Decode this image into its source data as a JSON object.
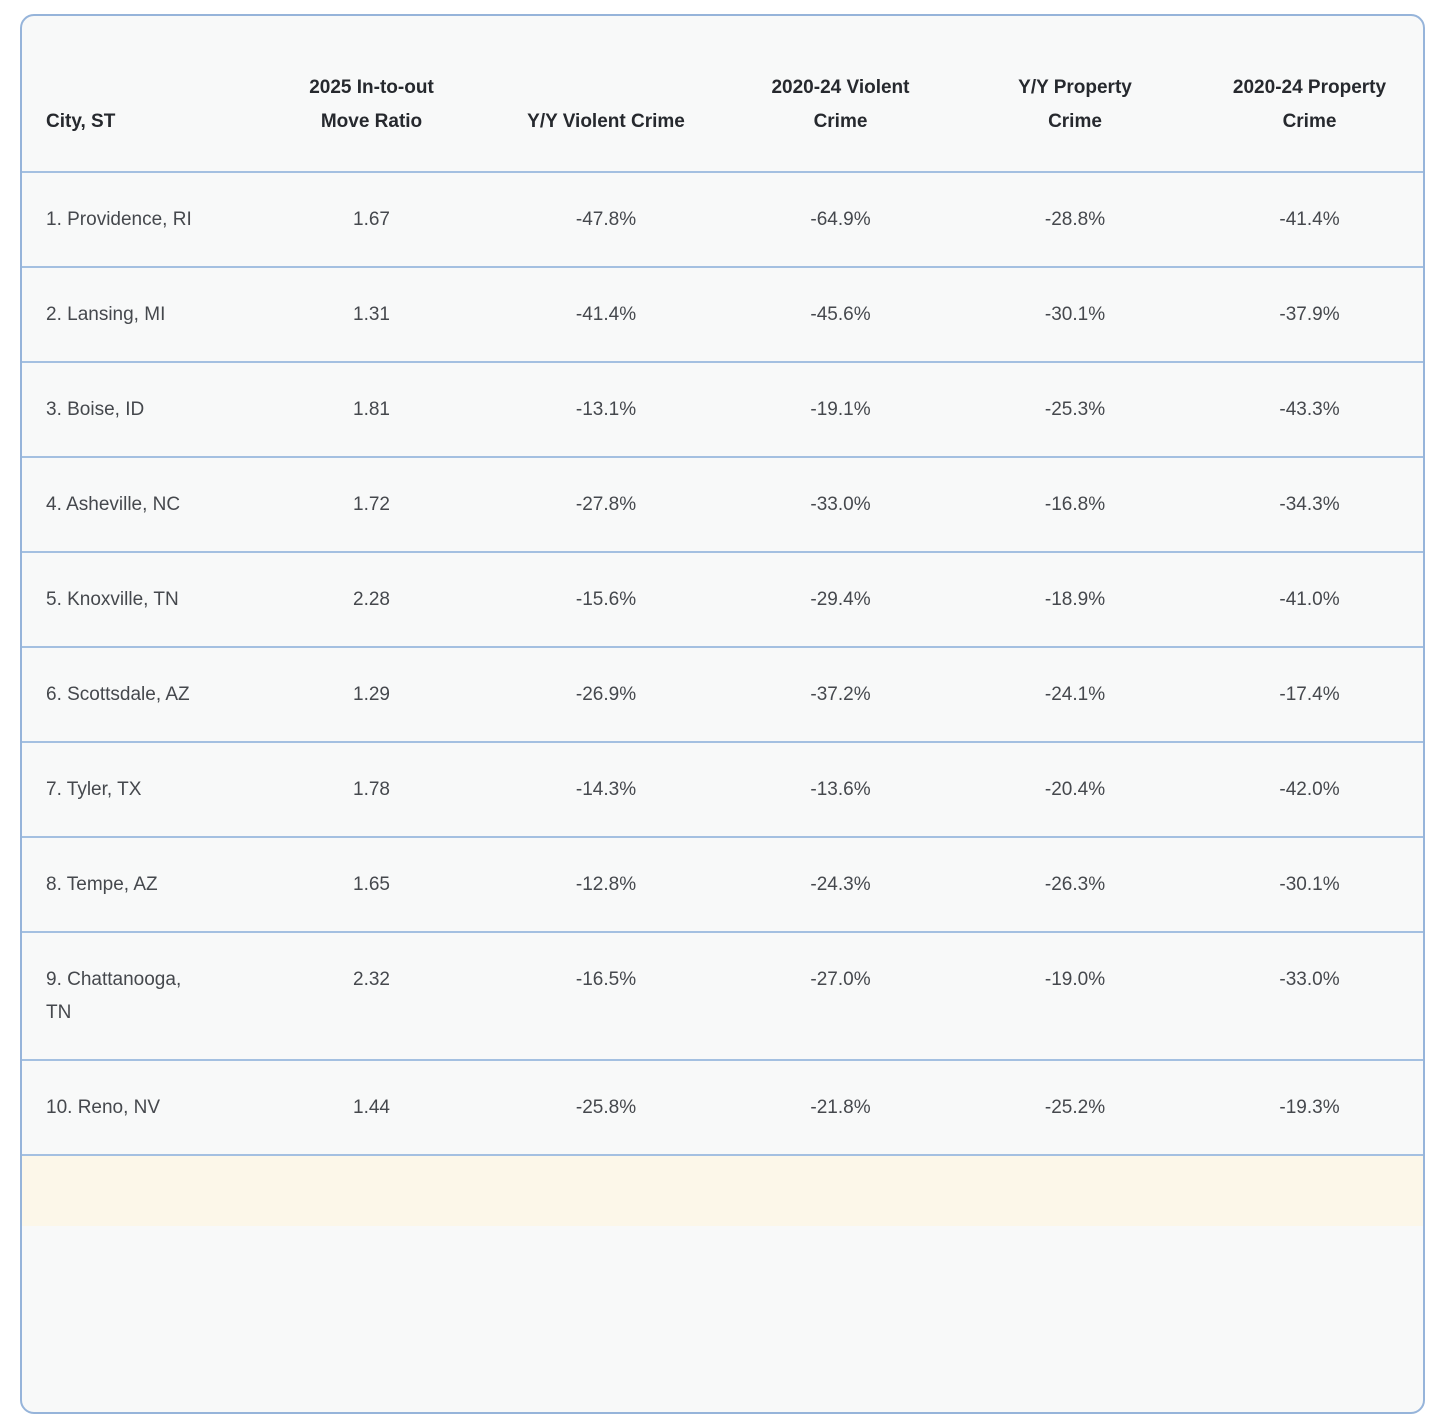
{
  "chart_data": {
    "type": "table",
    "columns": [
      "City, ST",
      "2025 In-to-out Move Ratio",
      "Y/Y Violent Crime",
      "2020-24 Violent Crime",
      "Y/Y Property Crime",
      "2020-24 Property Crime"
    ],
    "rows": [
      [
        "1. Providence, RI",
        "1.67",
        "-47.8%",
        "-64.9%",
        "-28.8%",
        "-41.4%"
      ],
      [
        "2. Lansing, MI",
        "1.31",
        "-41.4%",
        "-45.6%",
        "-30.1%",
        "-37.9%"
      ],
      [
        "3. Boise, ID",
        "1.81",
        "-13.1%",
        "-19.1%",
        "-25.3%",
        "-43.3%"
      ],
      [
        "4. Asheville, NC",
        "1.72",
        "-27.8%",
        "-33.0%",
        "-16.8%",
        "-34.3%"
      ],
      [
        "5. Knoxville, TN",
        "2.28",
        "-15.6%",
        "-29.4%",
        "-18.9%",
        "-41.0%"
      ],
      [
        "6. Scottsdale, AZ",
        "1.29",
        "-26.9%",
        "-37.2%",
        "-24.1%",
        "-17.4%"
      ],
      [
        "7. Tyler, TX",
        "1.78",
        "-14.3%",
        "-13.6%",
        "-20.4%",
        "-42.0%"
      ],
      [
        "8. Tempe, AZ",
        "1.65",
        "-12.8%",
        "-24.3%",
        "-26.3%",
        "-30.1%"
      ],
      [
        "9. Chattanooga, TN",
        "2.32",
        "-16.5%",
        "-27.0%",
        "-19.0%",
        "-33.0%"
      ],
      [
        "10. Reno, NV",
        "1.44",
        "-25.8%",
        "-21.8%",
        "-25.2%",
        "-19.3%"
      ]
    ]
  },
  "presentation": {
    "header_lines": [
      [
        "City, ST"
      ],
      [
        "2025 In-to-out",
        "Move Ratio"
      ],
      [
        "Y/Y Violent Crime"
      ],
      [
        "2020-24 Violent",
        "Crime"
      ],
      [
        "Y/Y Property",
        "Crime"
      ],
      [
        "2020-24 Property",
        "Crime"
      ]
    ],
    "city_lines": [
      [
        "1. Providence, RI"
      ],
      [
        "2. Lansing, MI"
      ],
      [
        "3. Boise, ID"
      ],
      [
        "4. Asheville, NC"
      ],
      [
        "5. Knoxville, TN"
      ],
      [
        "6. Scottsdale, AZ"
      ],
      [
        "7. Tyler, TX"
      ],
      [
        "8. Tempe, AZ"
      ],
      [
        "9. Chattanooga,",
        "TN"
      ],
      [
        "10. Reno, NV"
      ]
    ]
  },
  "colors": {
    "card_border": "#96b4da",
    "row_divider": "#a4c0e1",
    "table_background": "#f8f9f9",
    "page_background": "#ffffff",
    "header_text": "#26292e",
    "body_text": "#45484d",
    "partial_next_row_background": "#fcf7e9"
  }
}
